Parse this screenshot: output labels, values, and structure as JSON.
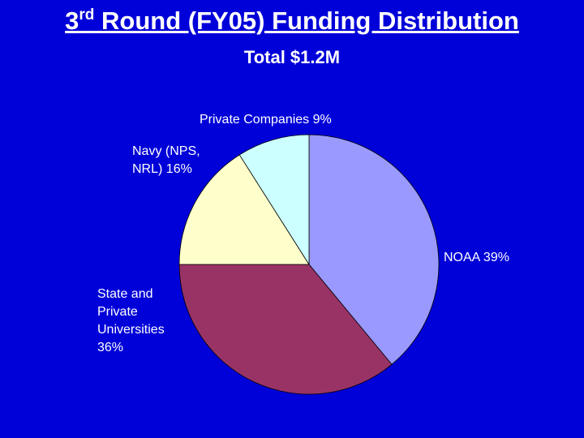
{
  "chart_data": {
    "type": "pie",
    "title": {
      "number": "3",
      "superscript": "rd",
      "text": "Round (FY05) Funding Distribution"
    },
    "subtitle": "Total $1.2M",
    "categories": [
      "NOAA",
      "State and Private Universities",
      "Navy (NPS, NRL)",
      "Private Companies"
    ],
    "values": [
      39,
      36,
      16,
      9
    ],
    "value_labels": [
      "39%",
      "36%",
      "16%",
      "9%"
    ],
    "colors": [
      "#9999ff",
      "#993366",
      "#ffffcc",
      "#ccffff"
    ]
  }
}
